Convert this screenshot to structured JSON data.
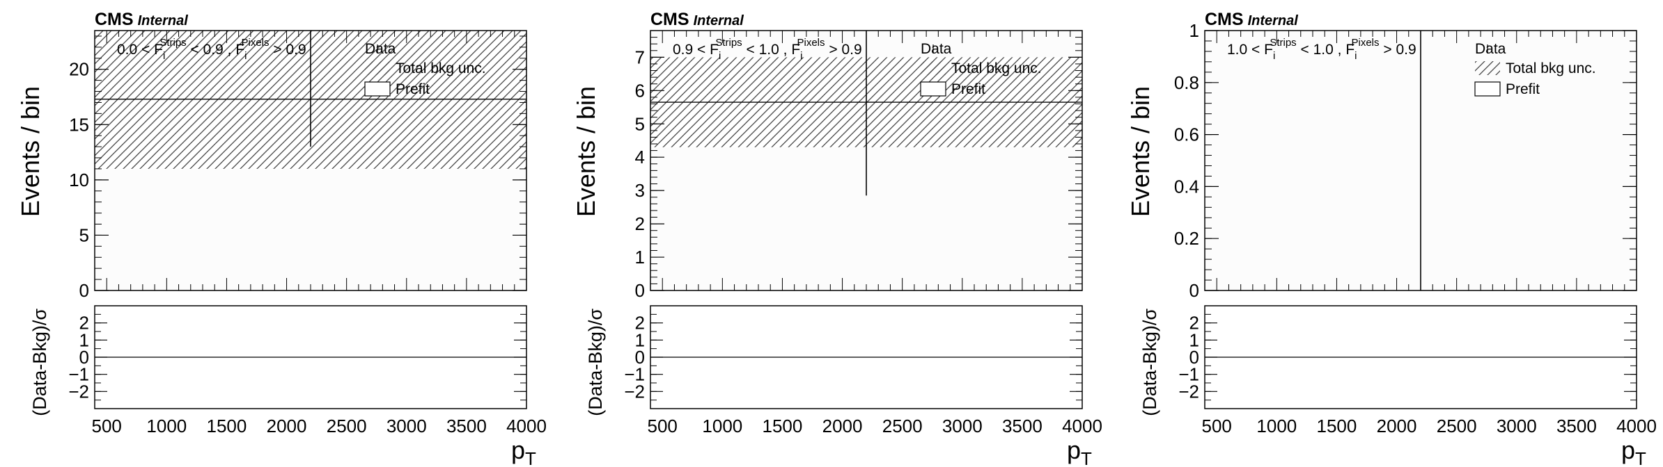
{
  "chart_data": [
    {
      "type": "bar",
      "brand": "CMS",
      "brand_note": "Internal",
      "region_label": {
        "lo": "0.0",
        "hi": "0.9",
        "pix": "0.9"
      },
      "ylabel": "Events / bin",
      "ratio_ylabel": "(Data-Bkg)/σ",
      "xlabel": {
        "main": "p",
        "sub": "T"
      },
      "xlim": [
        400,
        4000
      ],
      "ylim": [
        0,
        23.5
      ],
      "yticks": [
        "0",
        "5",
        "10",
        "15",
        "20"
      ],
      "ytick_values": [
        0,
        5,
        10,
        15,
        20
      ],
      "ratio_ylim": [
        -3,
        3
      ],
      "ratio_yticks": [
        "−2",
        "−1",
        "0",
        "1",
        "2"
      ],
      "ratio_ytick_values": [
        -2,
        -1,
        0,
        1,
        2
      ],
      "xticks": [
        "500",
        "1000",
        "1500",
        "2000",
        "2500",
        "3000",
        "3500",
        "4000"
      ],
      "xtick_values": [
        500,
        1000,
        1500,
        2000,
        2500,
        3000,
        3500,
        4000
      ],
      "bin": [
        400,
        4000
      ],
      "prefit": 17.3,
      "unc": [
        11.0,
        23.5
      ],
      "data_x": 2200,
      "data_err": [
        13.0,
        23.5
      ],
      "ratio_values": [
        0
      ]
    },
    {
      "type": "bar",
      "brand": "CMS",
      "brand_note": "Internal",
      "region_label": {
        "lo": "0.9",
        "hi": "1.0",
        "pix": "0.9"
      },
      "ylabel": "Events / bin",
      "ratio_ylabel": "(Data-Bkg)/σ",
      "xlabel": {
        "main": "p",
        "sub": "T"
      },
      "xlim": [
        400,
        4000
      ],
      "ylim": [
        0,
        7.8
      ],
      "yticks": [
        "0",
        "1",
        "2",
        "3",
        "4",
        "5",
        "6",
        "7"
      ],
      "ytick_values": [
        0,
        1,
        2,
        3,
        4,
        5,
        6,
        7
      ],
      "ratio_ylim": [
        -3,
        3
      ],
      "ratio_yticks": [
        "−2",
        "−1",
        "0",
        "1",
        "2"
      ],
      "ratio_ytick_values": [
        -2,
        -1,
        0,
        1,
        2
      ],
      "xticks": [
        "500",
        "1000",
        "1500",
        "2000",
        "2500",
        "3000",
        "3500",
        "4000"
      ],
      "xtick_values": [
        500,
        1000,
        1500,
        2000,
        2500,
        3000,
        3500,
        4000
      ],
      "bin": [
        400,
        4000
      ],
      "prefit": 5.65,
      "unc": [
        4.3,
        7.0
      ],
      "data_x": 2200,
      "data_err": [
        2.85,
        7.8
      ],
      "ratio_values": [
        0
      ]
    },
    {
      "type": "bar",
      "brand": "CMS",
      "brand_note": "Internal",
      "region_label": {
        "lo": "1.0",
        "hi": "1.0",
        "pix": "0.9"
      },
      "ylabel": "Events / bin",
      "ratio_ylabel": "(Data-Bkg)/σ",
      "xlabel": {
        "main": "p",
        "sub": "T"
      },
      "xlim": [
        400,
        4000
      ],
      "ylim": [
        0,
        1
      ],
      "yticks": [
        "0",
        "0.2",
        "0.4",
        "0.6",
        "0.8",
        "1"
      ],
      "ytick_values": [
        0,
        0.2,
        0.4,
        0.6,
        0.8,
        1
      ],
      "ratio_ylim": [
        -3,
        3
      ],
      "ratio_yticks": [
        "−2",
        "−1",
        "0",
        "1",
        "2"
      ],
      "ratio_ytick_values": [
        -2,
        -1,
        0,
        1,
        2
      ],
      "xticks": [
        "500",
        "1000",
        "1500",
        "2000",
        "2500",
        "3000",
        "3500",
        "4000"
      ],
      "xtick_values": [
        500,
        1000,
        1500,
        2000,
        2500,
        3000,
        3500,
        4000
      ],
      "bin": [
        400,
        4000
      ],
      "prefit": null,
      "unc": null,
      "data_x": 2200,
      "data_err": [
        0,
        1
      ],
      "ratio_values": [
        0
      ]
    }
  ],
  "legend": {
    "data": "Data",
    "unc": "Total bkg unc.",
    "prefit": "Prefit"
  },
  "region_text": {
    "lt": "<",
    "strips_var": "F",
    "strips_sub": "i",
    "strips_sup": "Strips",
    "pixels_var": "F",
    "pixels_sub": "i",
    "pixels_sup": "Pixels",
    "comma": ",",
    "gt": ">"
  },
  "colors": {
    "axis": "#000000",
    "hatch": "#444444",
    "fill": "#fcfcfc"
  }
}
